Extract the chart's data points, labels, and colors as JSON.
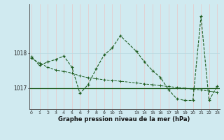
{
  "xlabel": "Graphe pression niveau de la mer (hPa)",
  "background_color": "#d0eaf0",
  "line_color": "#1e5c1e",
  "grid_color_v": "#e8c8c8",
  "grid_color_h": "#b8d8e0",
  "series1_x": [
    0,
    1,
    2,
    3,
    4,
    5,
    6,
    7,
    8,
    9,
    10,
    11,
    13,
    14,
    15,
    16,
    17,
    18,
    19,
    20,
    21,
    22,
    23
  ],
  "series1_y": [
    1017.9,
    1017.65,
    1017.75,
    1017.82,
    1017.92,
    1017.6,
    1016.85,
    1017.1,
    1017.55,
    1017.95,
    1018.15,
    1018.5,
    1018.05,
    1017.75,
    1017.5,
    1017.3,
    1016.95,
    1016.7,
    1016.65,
    1016.65,
    1019.05,
    1016.65,
    1017.05
  ],
  "series2_x": [
    0,
    1,
    2,
    3,
    4,
    5,
    6,
    7,
    8,
    9,
    10,
    11,
    13,
    14,
    15,
    16,
    17,
    18,
    19,
    20,
    21,
    22,
    23
  ],
  "series2_y": [
    1017.85,
    1017.72,
    1017.6,
    1017.52,
    1017.48,
    1017.43,
    1017.35,
    1017.3,
    1017.27,
    1017.24,
    1017.22,
    1017.2,
    1017.15,
    1017.12,
    1017.1,
    1017.07,
    1017.05,
    1017.02,
    1017.0,
    1016.97,
    1016.95,
    1016.92,
    1016.88
  ],
  "hline_y": 1017.0,
  "ylim": [
    1016.4,
    1019.4
  ],
  "yticks": [
    1017.0,
    1018.0
  ],
  "xlim": [
    -0.3,
    23.3
  ],
  "figsize": [
    3.2,
    2.0
  ],
  "dpi": 100
}
